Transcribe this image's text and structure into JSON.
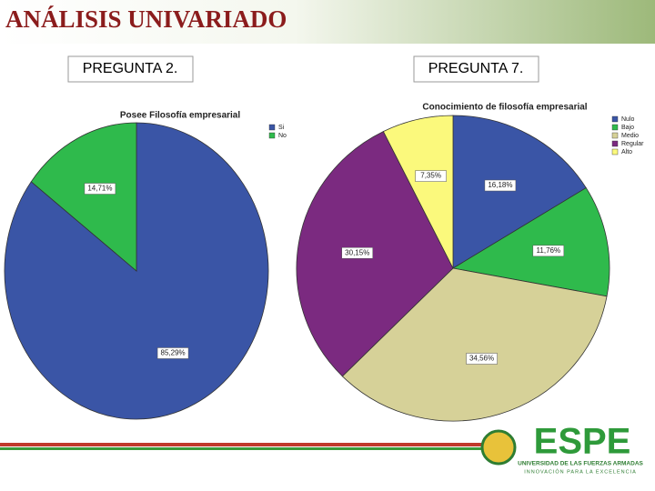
{
  "title": "ANÁLISIS UNIVARIADO",
  "panel_labels": [
    "PREGUNTA 2.",
    "PREGUNTA 7."
  ],
  "logo": {
    "name": "ESPE",
    "line1": "UNIVERSIDAD DE LAS FUERZAS ARMADAS",
    "line2": "INNOVACIÓN PARA LA EXCELENCIA"
  },
  "chart_data": [
    {
      "type": "pie",
      "title": "Posee Filosofía empresarial",
      "categories": [
        "Si",
        "No"
      ],
      "values": [
        85.29,
        14.71
      ],
      "value_labels": [
        "85,29%",
        "14,71%"
      ],
      "colors": [
        "#3a55a6",
        "#2fba4c"
      ],
      "legend": "right"
    },
    {
      "type": "pie",
      "title": "Conocimiento de filosofía empresarial",
      "categories": [
        "Nulo",
        "Bajo",
        "Medio",
        "Regular",
        "Alto"
      ],
      "values": [
        16.18,
        11.76,
        34.56,
        30.15,
        7.35
      ],
      "value_labels": [
        "16,18%",
        "11,76%",
        "34,56%",
        "30,15%",
        "7,35%"
      ],
      "colors": [
        "#3a55a6",
        "#2fba4c",
        "#d6d198",
        "#7b2a80",
        "#fbf97c"
      ],
      "legend": "right"
    }
  ]
}
